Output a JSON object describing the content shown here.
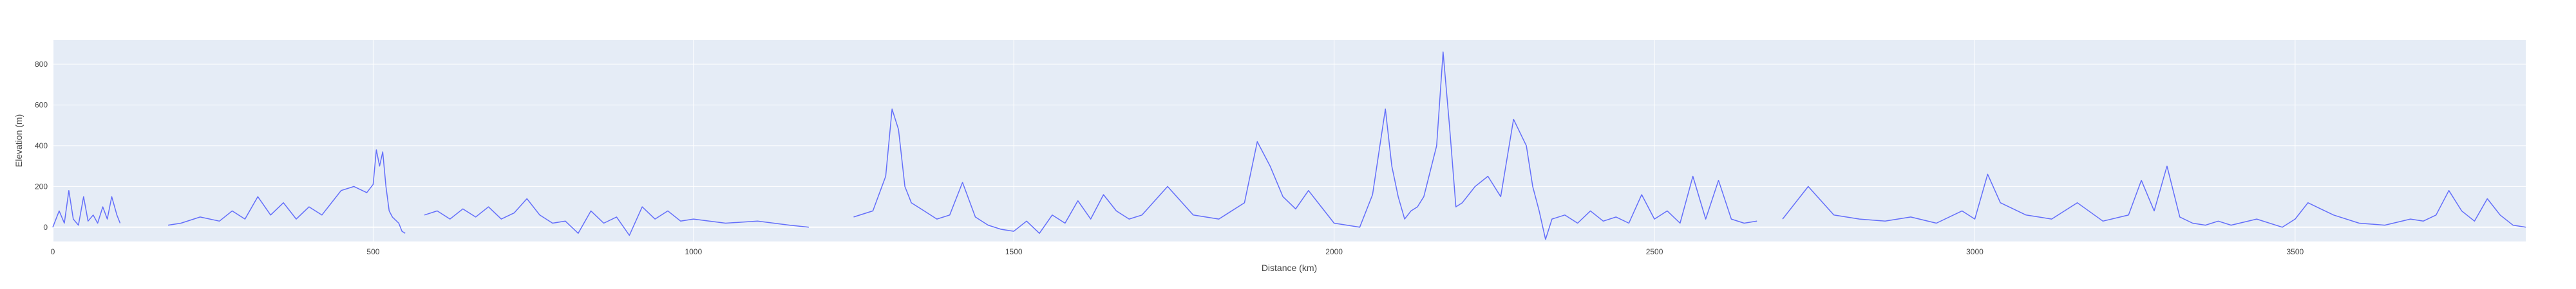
{
  "chart_data": {
    "type": "line",
    "xlabel": "Distance (km)",
    "ylabel": "Elevation (m)",
    "xlim": [
      0,
      3860
    ],
    "ylim": [
      -70,
      920
    ],
    "x_ticks": [
      0,
      500,
      1000,
      1500,
      2000,
      2500,
      3000,
      3500
    ],
    "y_ticks": [
      0,
      200,
      400,
      600,
      800
    ],
    "x_tick_labels": [
      "0",
      "500",
      "1000",
      "1500",
      "2000",
      "2500",
      "3000",
      "3500"
    ],
    "y_tick_labels": [
      "0",
      "200",
      "400",
      "600",
      "800"
    ],
    "grid": true,
    "legend": "none",
    "colors": {
      "plot_bg": "#e5ecf6",
      "grid": "#ffffff",
      "line": "#636efa",
      "zero_line": "#ffffff"
    },
    "series": [
      {
        "segments": [
          {
            "x": [
              0,
              10,
              18,
              25,
              32,
              40,
              48,
              55,
              63,
              70,
              78,
              85,
              92,
              100,
              105
            ],
            "y": [
              0,
              80,
              20,
              180,
              40,
              10,
              150,
              30,
              60,
              20,
              100,
              40,
              150,
              60,
              20
            ]
          },
          {
            "x": [
              180,
              200,
              230,
              260,
              280,
              300,
              320,
              340,
              360,
              380,
              400,
              420,
              450,
              470,
              490,
              500,
              505,
              510,
              515,
              520,
              525,
              530,
              540,
              545,
              550
            ],
            "y": [
              10,
              20,
              50,
              30,
              80,
              40,
              150,
              60,
              120,
              40,
              100,
              60,
              180,
              200,
              170,
              210,
              380,
              300,
              370,
              200,
              80,
              50,
              20,
              -20,
              -30
            ]
          },
          {
            "x": [
              580,
              600,
              620,
              640,
              660,
              680,
              700,
              720,
              740,
              760,
              780,
              800,
              820,
              840,
              860,
              880,
              900,
              920,
              940,
              960,
              980,
              1000,
              1050,
              1100,
              1150,
              1180
            ],
            "y": [
              60,
              80,
              40,
              90,
              50,
              100,
              40,
              70,
              140,
              60,
              20,
              30,
              -30,
              80,
              20,
              50,
              -40,
              100,
              40,
              80,
              30,
              40,
              20,
              30,
              10,
              0
            ]
          },
          {
            "x": [
              1250,
              1280,
              1300,
              1310,
              1320,
              1330,
              1340,
              1360,
              1380,
              1400,
              1420,
              1440,
              1460,
              1480,
              1500,
              1520,
              1540,
              1560,
              1580,
              1600,
              1620,
              1640,
              1660,
              1680,
              1700,
              1740,
              1780,
              1820,
              1860,
              1880,
              1900,
              1920,
              1940,
              1960,
              1980,
              2000,
              2020,
              2040,
              2060,
              2080,
              2090,
              2100,
              2110,
              2120,
              2130,
              2140,
              2160,
              2170,
              2180,
              2190,
              2200,
              2220,
              2240,
              2260,
              2280,
              2300,
              2310,
              2320,
              2330,
              2340,
              2360,
              2380,
              2400,
              2420,
              2440,
              2460,
              2480,
              2500,
              2520,
              2540,
              2560,
              2580,
              2600,
              2620,
              2640,
              2660
            ],
            "y": [
              50,
              80,
              250,
              580,
              480,
              200,
              120,
              80,
              40,
              60,
              220,
              50,
              10,
              -10,
              -20,
              30,
              -30,
              60,
              20,
              130,
              40,
              160,
              80,
              40,
              60,
              200,
              60,
              40,
              120,
              420,
              300,
              150,
              90,
              180,
              100,
              20,
              10,
              0,
              160,
              580,
              300,
              150,
              40,
              80,
              100,
              150,
              400,
              860,
              500,
              100,
              120,
              200,
              250,
              150,
              530,
              400,
              200,
              80,
              -60,
              40,
              60,
              20,
              80,
              30,
              50,
              20,
              160,
              40,
              80,
              20,
              250,
              40,
              230,
              40,
              20,
              30
            ]
          },
          {
            "x": [
              2700,
              2740,
              2780,
              2820,
              2860,
              2900,
              2940,
              2980,
              3000,
              3020,
              3040,
              3080,
              3120,
              3160,
              3200,
              3240,
              3260,
              3280,
              3300,
              3320,
              3340,
              3360,
              3380,
              3400,
              3440,
              3480,
              3500,
              3520,
              3540,
              3560,
              3600,
              3640,
              3680,
              3700,
              3720,
              3740,
              3760,
              3780,
              3800,
              3820,
              3840,
              3860
            ],
            "y": [
              40,
              200,
              60,
              40,
              30,
              50,
              20,
              80,
              40,
              260,
              120,
              60,
              40,
              120,
              30,
              60,
              230,
              80,
              300,
              50,
              20,
              10,
              30,
              10,
              40,
              0,
              40,
              120,
              90,
              60,
              20,
              10,
              40,
              30,
              60,
              180,
              80,
              30,
              140,
              60,
              10,
              0
            ]
          }
        ]
      }
    ]
  }
}
